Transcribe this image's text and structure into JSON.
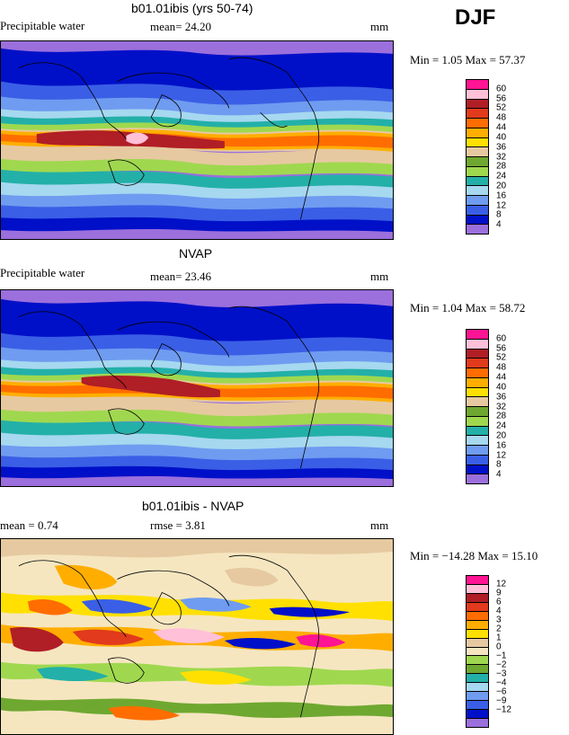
{
  "season": "DJF",
  "colors": {
    "abs_scale": [
      "#9b6fdc",
      "#0010c8",
      "#3a5fe6",
      "#6f9cf0",
      "#a6d8f0",
      "#23b0a8",
      "#9fd84f",
      "#6fa830",
      "#e6c9a0",
      "#ffe000",
      "#ffae00",
      "#ff6d00",
      "#e13a1c",
      "#b01e26",
      "#ffc0d8",
      "#ff1493"
    ],
    "diff_scale": [
      "#9b6fdc",
      "#0010c8",
      "#3a5fe6",
      "#6f9cf0",
      "#a6d8f0",
      "#23b0a8",
      "#6fa830",
      "#9fd84f",
      "#f5e6c0",
      "#e6c9a0",
      "#ffe000",
      "#ffae00",
      "#ff6d00",
      "#e13a1c",
      "#b01e26",
      "#ffc0d8",
      "#ff1493"
    ]
  },
  "panels": [
    {
      "title": "b01.01ibis (yrs 50-74)",
      "left_label": "Precipitable water",
      "stat1": "mean=  24.20",
      "stat2": "",
      "units": "mm",
      "minmax": "Min =    1.05 Max =   57.37",
      "ticks": [
        "60",
        "56",
        "52",
        "48",
        "44",
        "40",
        "36",
        "32",
        "28",
        "24",
        "20",
        "16",
        "12",
        "8",
        "4"
      ],
      "map_type": "abs"
    },
    {
      "title": "NVAP",
      "left_label": "Precipitable water",
      "stat1": "mean=  23.46",
      "stat2": "",
      "units": "mm",
      "minmax": "Min =    1.04 Max =   58.72",
      "ticks": [
        "60",
        "56",
        "52",
        "48",
        "44",
        "40",
        "36",
        "32",
        "28",
        "24",
        "20",
        "16",
        "12",
        "8",
        "4"
      ],
      "map_type": "abs"
    },
    {
      "title": "b01.01ibis - NVAP",
      "left_label": "mean =    0.74",
      "stat1": "rmse =    3.81",
      "stat2": "",
      "units": "mm",
      "minmax": "Min = −14.28 Max =  15.10",
      "ticks": [
        "12",
        "9",
        "6",
        "4",
        "3",
        "2",
        "1",
        "0",
        "−1",
        "−2",
        "−3",
        "−4",
        "−6",
        "−9",
        "−12"
      ],
      "map_type": "diff"
    }
  ]
}
